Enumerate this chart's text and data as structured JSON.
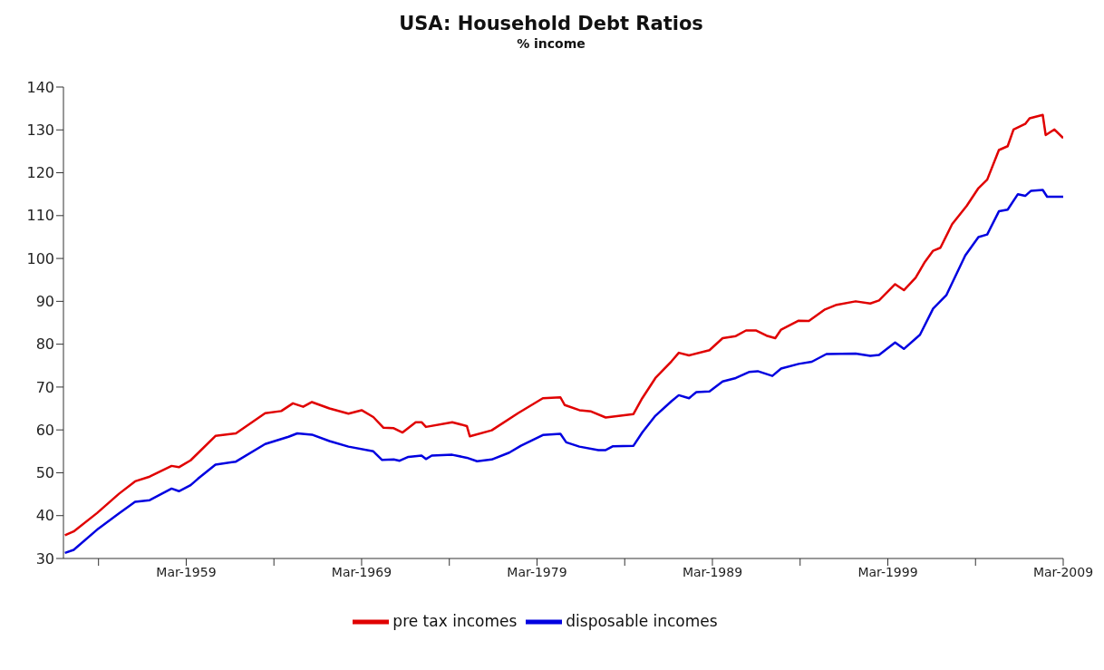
{
  "chart_data": {
    "type": "line",
    "title": "USA: Household Debt Ratios",
    "subtitle": "% income",
    "xlim": [
      "1952-03",
      "2009-03"
    ],
    "xticks": [
      {
        "value": "1954-03",
        "label": null
      },
      {
        "value": "1959-03",
        "label": "Mar-1959"
      },
      {
        "value": "1964-03",
        "label": null
      },
      {
        "value": "1969-03",
        "label": "Mar-1969"
      },
      {
        "value": "1974-03",
        "label": null
      },
      {
        "value": "1979-03",
        "label": "Mar-1979"
      },
      {
        "value": "1984-03",
        "label": null
      },
      {
        "value": "1989-03",
        "label": "Mar-1989"
      },
      {
        "value": "1994-03",
        "label": null
      },
      {
        "value": "1999-03",
        "label": "Mar-1999"
      },
      {
        "value": "2004-03",
        "label": null
      },
      {
        "value": "2009-03",
        "label": "Mar-2009"
      }
    ],
    "ylim": [
      30,
      140
    ],
    "yticks": [
      30,
      40,
      50,
      60,
      70,
      80,
      90,
      100,
      110,
      120,
      130,
      140
    ],
    "legend": "bottom",
    "marker": "none",
    "line_style": "solid",
    "series": [
      {
        "name": "pre tax incomes",
        "color": "#e00000",
        "x": [
          "1952-04",
          "1952-10",
          "1954-02",
          "1955-05",
          "1956-04",
          "1957-02",
          "1958-05",
          "1958-10",
          "1959-06",
          "1960-11",
          "1962-01",
          "1963-09",
          "1964-08",
          "1965-04",
          "1965-11",
          "1966-05",
          "1967-05",
          "1968-06",
          "1969-03",
          "1969-11",
          "1970-06",
          "1971-01",
          "1971-07",
          "1972-04",
          "1972-08",
          "1972-11",
          "1974-05",
          "1975-03",
          "1975-05",
          "1976-08",
          "1978-02",
          "1979-07",
          "1980-07",
          "1980-10",
          "1981-08",
          "1982-04",
          "1983-02",
          "1984-09",
          "1985-03",
          "1985-12",
          "1986-11",
          "1987-04",
          "1987-11",
          "1989-01",
          "1989-10",
          "1990-07",
          "1991-02",
          "1991-09",
          "1992-04",
          "1992-10",
          "1993-02",
          "1994-02",
          "1994-09",
          "1995-08",
          "1996-04",
          "1997-05",
          "1998-03",
          "1998-09",
          "1999-08",
          "2000-02",
          "2000-10",
          "2001-04",
          "2001-10",
          "2002-03",
          "2002-11",
          "2003-09",
          "2004-05",
          "2004-11",
          "2005-07",
          "2006-01",
          "2006-05",
          "2007-01",
          "2007-04",
          "2008-01",
          "2008-03",
          "2008-09",
          "2009-03"
        ],
        "values": [
          35.4,
          36.3,
          40.6,
          45.1,
          48.0,
          49.1,
          51.6,
          51.3,
          52.9,
          58.6,
          59.2,
          63.9,
          64.4,
          66.2,
          65.4,
          66.5,
          65.0,
          63.8,
          64.6,
          63.0,
          60.5,
          60.4,
          59.4,
          61.8,
          61.8,
          60.7,
          61.8,
          60.9,
          58.5,
          59.9,
          63.9,
          67.4,
          67.6,
          65.8,
          64.6,
          64.3,
          62.9,
          63.7,
          67.4,
          72.1,
          76.0,
          78.0,
          77.4,
          78.6,
          81.4,
          81.9,
          83.2,
          83.2,
          82.0,
          81.4,
          83.4,
          85.5,
          85.4,
          88.1,
          89.2,
          90.0,
          89.5,
          90.2,
          94.0,
          92.6,
          95.5,
          99.0,
          101.8,
          102.5,
          108.0,
          112.3,
          116.4,
          118.4,
          125.3,
          126.2,
          130.1,
          131.4,
          132.7,
          133.5,
          128.8,
          130.1,
          128.1
        ]
      },
      {
        "name": "disposable incomes",
        "color": "#0000e0",
        "x": [
          "1952-04",
          "1952-10",
          "1954-03",
          "1955-05",
          "1956-04",
          "1957-02",
          "1958-05",
          "1958-10",
          "1959-06",
          "1959-11",
          "1960-11",
          "1962-01",
          "1963-09",
          "1965-01",
          "1965-07",
          "1966-05",
          "1967-05",
          "1968-06",
          "1969-11",
          "1970-05",
          "1971-01",
          "1971-05",
          "1971-11",
          "1972-08",
          "1972-11",
          "1973-03",
          "1974-05",
          "1975-03",
          "1975-10",
          "1976-08",
          "1977-08",
          "1978-04",
          "1979-07",
          "1980-07",
          "1980-11",
          "1981-08",
          "1982-09",
          "1983-02",
          "1983-07",
          "1984-09",
          "1985-03",
          "1985-12",
          "1986-11",
          "1987-04",
          "1987-11",
          "1988-04",
          "1989-01",
          "1989-10",
          "1990-07",
          "1991-04",
          "1991-10",
          "1992-08",
          "1993-02",
          "1994-02",
          "1994-11",
          "1995-09",
          "1997-05",
          "1998-03",
          "1998-09",
          "1999-08",
          "2000-02",
          "2001-01",
          "2001-10",
          "2002-07",
          "2003-08",
          "2004-05",
          "2004-11",
          "2005-07",
          "2006-01",
          "2006-08",
          "2007-01",
          "2007-05",
          "2008-01",
          "2008-04",
          "2009-03"
        ],
        "values": [
          31.3,
          32.0,
          37.0,
          40.5,
          43.2,
          43.6,
          46.3,
          45.7,
          47.1,
          48.6,
          51.9,
          52.6,
          56.7,
          58.4,
          59.2,
          58.9,
          57.4,
          56.1,
          55.0,
          53.0,
          53.1,
          52.8,
          53.7,
          54.0,
          53.2,
          54.0,
          54.2,
          53.5,
          52.7,
          53.1,
          54.7,
          56.3,
          58.8,
          59.1,
          57.1,
          56.1,
          55.3,
          55.3,
          56.2,
          56.3,
          59.4,
          63.3,
          66.7,
          68.1,
          67.4,
          68.8,
          69.0,
          71.3,
          72.1,
          73.5,
          73.7,
          72.6,
          74.3,
          75.4,
          75.9,
          77.7,
          77.8,
          77.3,
          77.5,
          80.4,
          78.9,
          82.2,
          88.3,
          91.4,
          100.7,
          105.0,
          105.6,
          111.0,
          111.4,
          115.0,
          114.6,
          115.8,
          116.0,
          114.4,
          114.4
        ]
      }
    ]
  }
}
